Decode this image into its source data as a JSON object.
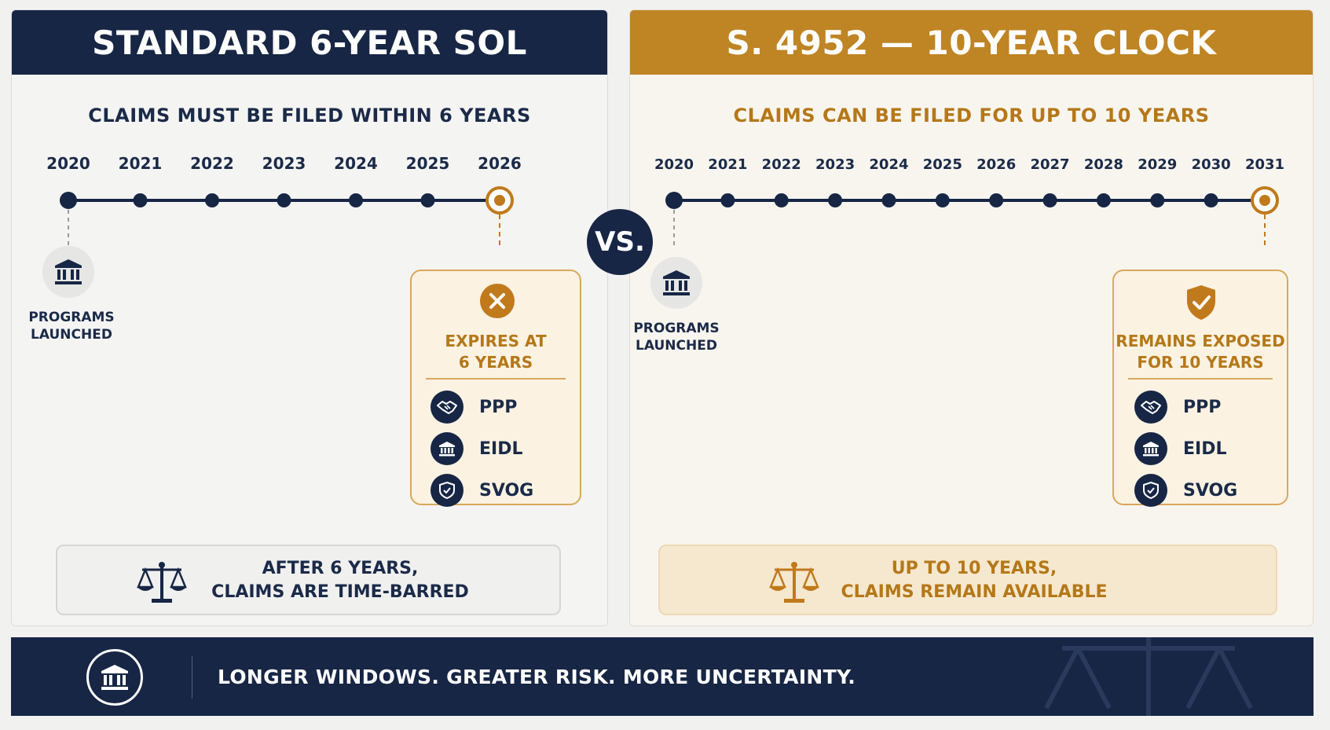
{
  "left": {
    "header": "STANDARD 6-YEAR SOL",
    "subtitle": "CLAIMS MUST BE FILED WITHIN 6 YEARS",
    "years": [
      "2020",
      "2021",
      "2022",
      "2023",
      "2024",
      "2025",
      "2026"
    ],
    "launch_label_line1": "PROGRAMS",
    "launch_label_line2": "LAUNCHED",
    "callout": {
      "icon": "x-circle-icon",
      "title_line1": "EXPIRES AT",
      "title_line2": "6 YEARS",
      "programs": [
        {
          "label": "PPP",
          "icon": "handshake-icon"
        },
        {
          "label": "EIDL",
          "icon": "bank-icon"
        },
        {
          "label": "SVOG",
          "icon": "shield-icon"
        }
      ]
    },
    "footer_line1": "AFTER 6 YEARS,",
    "footer_line2": "CLAIMS ARE TIME-BARRED"
  },
  "right": {
    "header": "S. 4952 — 10-YEAR CLOCK",
    "subtitle": "CLAIMS CAN BE FILED FOR UP TO 10 YEARS",
    "years": [
      "2020",
      "2021",
      "2022",
      "2023",
      "2024",
      "2025",
      "2026",
      "2027",
      "2028",
      "2029",
      "2030",
      "2031"
    ],
    "launch_label_line1": "PROGRAMS",
    "launch_label_line2": "LAUNCHED",
    "callout": {
      "icon": "shield-check-icon",
      "title_line1": "REMAINS EXPOSED",
      "title_line2": "FOR 10 YEARS",
      "programs": [
        {
          "label": "PPP",
          "icon": "handshake-icon"
        },
        {
          "label": "EIDL",
          "icon": "bank-icon"
        },
        {
          "label": "SVOG",
          "icon": "shield-icon"
        }
      ]
    },
    "footer_line1": "UP TO 10 YEARS,",
    "footer_line2": "CLAIMS REMAIN AVAILABLE"
  },
  "vs": "VS.",
  "bottom_bar": {
    "icon": "bank-icon",
    "tagline": "LONGER WINDOWS. GREATER RISK. MORE UNCERTAINTY."
  },
  "colors": {
    "navy": "#172645",
    "gold": "#bf8424",
    "gold_text": "#b57818",
    "gold_light": "#fbf2e2"
  }
}
